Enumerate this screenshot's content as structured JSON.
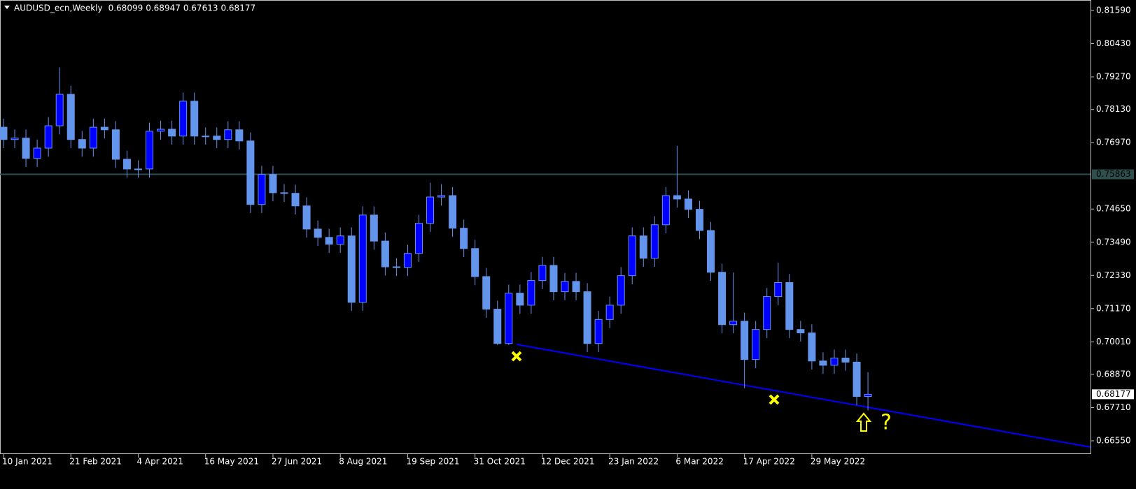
{
  "chart_data": {
    "type": "candlestick",
    "title": "AUDUSD_ecn,Weekly",
    "categories": [
      "10 Jan 2021",
      null,
      null,
      null,
      null,
      null,
      "21 Feb 2021",
      null,
      null,
      null,
      null,
      null,
      "4 Apr 2021",
      null,
      null,
      null,
      null,
      null,
      "16 May 2021",
      null,
      null,
      null,
      null,
      null,
      "27 Jun 2021",
      null,
      null,
      null,
      null,
      null,
      "8 Aug 2021",
      null,
      null,
      null,
      null,
      null,
      "19 Sep 2021",
      null,
      null,
      null,
      null,
      null,
      "31 Oct 2021",
      null,
      null,
      null,
      null,
      null,
      "12 Dec 2021",
      null,
      null,
      null,
      null,
      null,
      "23 Jan 2022",
      null,
      null,
      null,
      null,
      null,
      "6 Mar 2022",
      null,
      null,
      null,
      null,
      null,
      "17 Apr 2022",
      null,
      null,
      null,
      null,
      null,
      "29 May 2022",
      null,
      null,
      null,
      null,
      null
    ],
    "open": [
      0.7751,
      0.7708,
      0.7713,
      0.7642,
      0.7678,
      0.7756,
      0.7866,
      0.7708,
      0.7678,
      0.7751,
      0.7742,
      0.7639,
      0.7605,
      0.7605,
      0.7737,
      0.7744,
      0.772,
      0.7842,
      0.772,
      0.772,
      0.7708,
      0.7742,
      0.7703,
      0.7481,
      0.7586,
      0.7522,
      0.752,
      0.7476,
      0.7395,
      0.7366,
      0.7342,
      0.7371,
      0.7139,
      0.7444,
      0.7353,
      0.7263,
      0.7261,
      0.731,
      0.7415,
      0.7507,
      0.7512,
      0.7398,
      0.7327,
      0.7229,
      0.7115,
      0.6995,
      0.7171,
      0.7129,
      0.7215,
      0.7268,
      0.7176,
      0.7212,
      0.7176,
      0.6995,
      0.7079,
      0.7129,
      0.7232,
      0.7371,
      0.7293,
      0.741,
      0.7512,
      0.75,
      0.7464,
      0.739,
      0.7244,
      0.7061,
      0.7073,
      0.6939,
      0.7044,
      0.7159,
      0.7208,
      0.7044,
      0.7032,
      0.6934,
      0.6919,
      0.6944,
      0.693,
      0.68099
    ],
    "high": [
      0.7781,
      0.7743,
      0.7743,
      0.7708,
      0.7786,
      0.796,
      0.7896,
      0.7738,
      0.7781,
      0.7781,
      0.7772,
      0.7669,
      0.7635,
      0.7767,
      0.7774,
      0.7774,
      0.7872,
      0.7872,
      0.775,
      0.775,
      0.7772,
      0.7772,
      0.7733,
      0.7616,
      0.7616,
      0.7552,
      0.755,
      0.7506,
      0.7425,
      0.7396,
      0.7401,
      0.7401,
      0.7474,
      0.7474,
      0.7383,
      0.7293,
      0.734,
      0.7445,
      0.7557,
      0.7552,
      0.7542,
      0.7428,
      0.7357,
      0.7259,
      0.7145,
      0.7201,
      0.7201,
      0.7245,
      0.7298,
      0.7298,
      0.7242,
      0.7242,
      0.7206,
      0.7109,
      0.7159,
      0.7262,
      0.7401,
      0.7401,
      0.744,
      0.7542,
      0.7686,
      0.753,
      0.7494,
      0.742,
      0.7274,
      0.7243,
      0.7103,
      0.7074,
      0.7189,
      0.7278,
      0.7238,
      0.7074,
      0.7062,
      0.6964,
      0.6974,
      0.6974,
      0.696,
      0.68947
    ],
    "low": [
      0.7678,
      0.7678,
      0.7612,
      0.7612,
      0.7648,
      0.7726,
      0.7678,
      0.7648,
      0.7648,
      0.7712,
      0.7609,
      0.7575,
      0.7575,
      0.7575,
      0.7707,
      0.769,
      0.769,
      0.769,
      0.769,
      0.7678,
      0.7678,
      0.7673,
      0.7451,
      0.7451,
      0.7492,
      0.749,
      0.7446,
      0.7365,
      0.7336,
      0.7312,
      0.7312,
      0.7109,
      0.7109,
      0.7323,
      0.7233,
      0.7231,
      0.7231,
      0.728,
      0.7385,
      0.7477,
      0.7368,
      0.7297,
      0.7199,
      0.7085,
      0.699,
      0.699,
      0.7099,
      0.7099,
      0.7185,
      0.7146,
      0.7146,
      0.7146,
      0.6965,
      0.6965,
      0.7049,
      0.7099,
      0.7202,
      0.7263,
      0.7263,
      0.738,
      0.747,
      0.7434,
      0.736,
      0.7214,
      0.7031,
      0.7031,
      0.6839,
      0.6909,
      0.7014,
      0.7129,
      0.7014,
      0.7002,
      0.6904,
      0.6889,
      0.6889,
      0.69,
      0.678,
      0.67613
    ],
    "close": [
      0.7708,
      0.7713,
      0.7642,
      0.7678,
      0.7756,
      0.7866,
      0.7708,
      0.7678,
      0.7751,
      0.7742,
      0.7639,
      0.7605,
      0.7605,
      0.7737,
      0.7744,
      0.772,
      0.7842,
      0.772,
      0.772,
      0.7708,
      0.7742,
      0.7703,
      0.7481,
      0.7586,
      0.7522,
      0.752,
      0.7476,
      0.7395,
      0.7366,
      0.7342,
      0.7371,
      0.7139,
      0.7444,
      0.7353,
      0.7263,
      0.7261,
      0.731,
      0.7415,
      0.7507,
      0.7512,
      0.7398,
      0.7327,
      0.7229,
      0.7115,
      0.6995,
      0.7171,
      0.7129,
      0.7215,
      0.7268,
      0.7176,
      0.7212,
      0.7176,
      0.6995,
      0.7079,
      0.7129,
      0.7232,
      0.7371,
      0.7293,
      0.741,
      0.7512,
      0.75,
      0.7464,
      0.739,
      0.7244,
      0.7061,
      0.7073,
      0.6939,
      0.7044,
      0.7159,
      0.7208,
      0.7044,
      0.7032,
      0.6934,
      0.6919,
      0.6944,
      0.693,
      0.681,
      0.68177
    ],
    "bull_color": "#0000ff",
    "bear_color": "#6495ed",
    "ylim": [
      0.66135,
      0.81956
    ],
    "yticks": [
      {
        "value": 0.8159,
        "label": "0.81590"
      },
      {
        "value": 0.8043,
        "label": "0.80430"
      },
      {
        "value": 0.7927,
        "label": "0.79270"
      },
      {
        "value": 0.7813,
        "label": "0.78130"
      },
      {
        "value": 0.7697,
        "label": "0.76970"
      },
      {
        "value": 0.7465,
        "label": "0.74650"
      },
      {
        "value": 0.7349,
        "label": "0.73490"
      },
      {
        "value": 0.7233,
        "label": "0.72330"
      },
      {
        "value": 0.7117,
        "label": "0.71170"
      },
      {
        "value": 0.7001,
        "label": "0.70010"
      },
      {
        "value": 0.6887,
        "label": "0.68870"
      },
      {
        "value": 0.6771,
        "label": "0.67710"
      },
      {
        "value": 0.6655,
        "label": "0.66550"
      }
    ],
    "hline": 0.75863,
    "annotation": "?"
  }
}
